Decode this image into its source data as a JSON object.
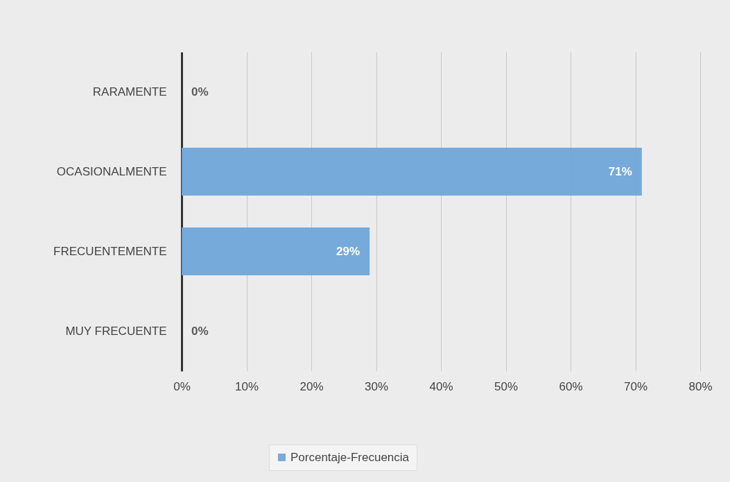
{
  "chart_data": {
    "type": "bar",
    "orientation": "horizontal",
    "categories": [
      "RARAMENTE",
      "OCASIONALMENTE",
      "FRECUENTEMENTE",
      "MUY FRECUENTE"
    ],
    "series": [
      {
        "name": "Porcentaje-Frecuencia",
        "color": "#6fa6da",
        "values": [
          0,
          71,
          29,
          0
        ],
        "value_labels": [
          "0%",
          "71%",
          "29%",
          "0%"
        ]
      }
    ],
    "xlim": [
      0,
      80
    ],
    "xticks": [
      {
        "value": 0,
        "label": "0%"
      },
      {
        "value": 10,
        "label": "10%"
      },
      {
        "value": 20,
        "label": "20%"
      },
      {
        "value": 30,
        "label": "30%"
      },
      {
        "value": 40,
        "label": "40%"
      },
      {
        "value": 50,
        "label": "50%"
      },
      {
        "value": 60,
        "label": "60%"
      },
      {
        "value": 70,
        "label": "70%"
      },
      {
        "value": 80,
        "label": "80%"
      }
    ],
    "grid": "x",
    "legend": "bottom"
  }
}
